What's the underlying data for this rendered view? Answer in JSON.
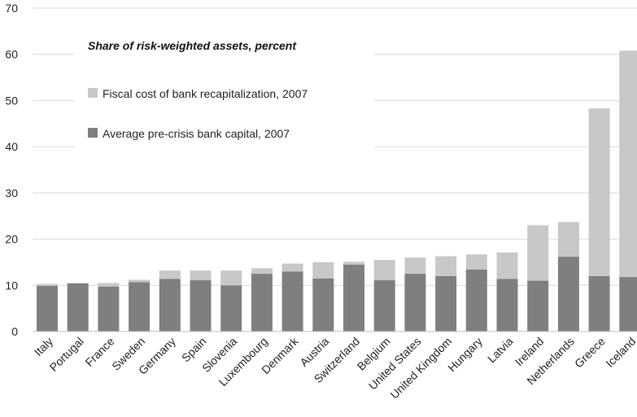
{
  "chart_data": {
    "type": "bar",
    "stacked": true,
    "title": "Share of risk-weighted assets, percent",
    "xlabel": "",
    "ylabel": "",
    "ylim": [
      0,
      70
    ],
    "yticks": [
      0,
      10,
      20,
      30,
      40,
      50,
      60,
      70
    ],
    "grid": true,
    "legend_position": "top-left",
    "categories": [
      "Italy",
      "Portugal",
      "France",
      "Sweden",
      "Germany",
      "Spain",
      "Slovenia",
      "Luxembourg",
      "Denmark",
      "Austria",
      "Switzerland",
      "Belgium",
      "United States",
      "United Kingdom",
      "Hungary",
      "Latvia",
      "Ireland",
      "Netherlands",
      "Greece",
      "Iceland"
    ],
    "series": [
      {
        "name": "Average pre-crisis bank capital, 2007",
        "color": "#7f7f7f",
        "values": [
          9.9,
          10.4,
          9.7,
          10.7,
          11.4,
          11.1,
          10.0,
          12.5,
          13.0,
          11.5,
          14.5,
          11.1,
          12.5,
          12.0,
          13.4,
          11.4,
          11.0,
          16.2,
          12.0,
          11.8
        ]
      },
      {
        "name": "Fiscal cost of bank recapitalization, 2007",
        "color": "#c8c8c8",
        "values": [
          0.4,
          0.1,
          0.8,
          0.5,
          1.8,
          2.1,
          3.2,
          1.2,
          1.7,
          3.5,
          0.6,
          4.4,
          3.5,
          4.3,
          3.3,
          5.7,
          12.0,
          7.5,
          36.3,
          49.0
        ]
      }
    ]
  },
  "colors": {
    "capital": "#7f7f7f",
    "recap": "#c8c8c8",
    "grid": "#d9d9d9",
    "axis": "#bfbfbf"
  }
}
